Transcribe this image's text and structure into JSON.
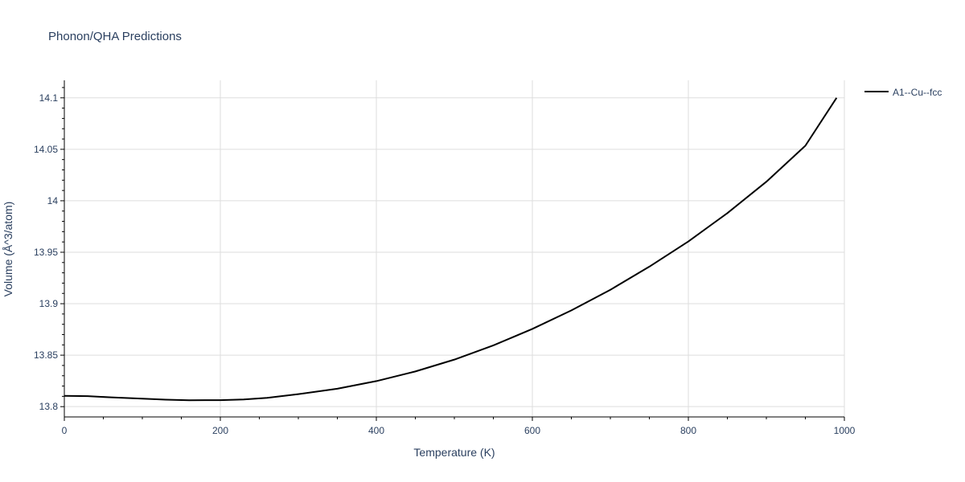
{
  "chart_data": {
    "type": "line",
    "title": "Phonon/QHA Predictions",
    "xlabel": "Temperature (K)",
    "ylabel": "Volume (Å^3/atom)",
    "xlim": [
      0,
      1000
    ],
    "ylim": [
      13.79,
      14.117
    ],
    "x_ticks": [
      0,
      200,
      400,
      600,
      800,
      1000
    ],
    "x_tick_labels": [
      "0",
      "200",
      "400",
      "600",
      "800",
      "1000"
    ],
    "y_ticks": [
      13.8,
      13.85,
      13.9,
      13.95,
      14.0,
      14.05,
      14.1
    ],
    "y_tick_labels": [
      "13.8",
      "13.85",
      "13.9",
      "13.95",
      "14",
      "14.05",
      "14.1"
    ],
    "grid": true,
    "legend_position": "top-right",
    "series": [
      {
        "name": "A1--Cu--fcc",
        "color": "#000000",
        "x": [
          0,
          30,
          60,
          100,
          130,
          160,
          200,
          230,
          260,
          300,
          350,
          400,
          450,
          500,
          550,
          600,
          650,
          700,
          750,
          800,
          850,
          900,
          950,
          990
        ],
        "y": [
          13.8105,
          13.8102,
          13.809,
          13.8078,
          13.8068,
          13.8062,
          13.8063,
          13.807,
          13.8085,
          13.8121,
          13.8174,
          13.8248,
          13.8342,
          13.8457,
          13.8595,
          13.8755,
          13.8935,
          13.9135,
          13.936,
          13.9605,
          13.988,
          14.0185,
          14.0535,
          14.1
        ]
      }
    ]
  }
}
